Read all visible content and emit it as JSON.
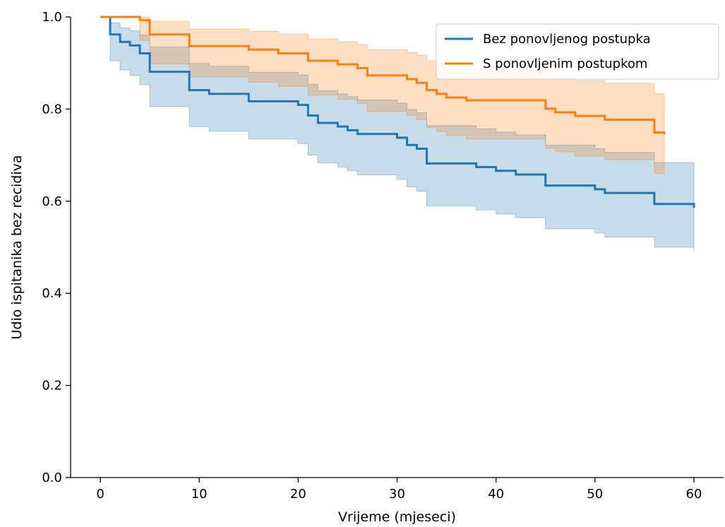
{
  "chart_data": {
    "type": "line",
    "title": "",
    "xlabel": "Vrijeme (mjeseci)",
    "ylabel": "Udio ispitanika bez recidiva",
    "xlim": [
      -3,
      63
    ],
    "ylim": [
      0,
      1.0
    ],
    "x_ticks": [
      0,
      10,
      20,
      30,
      40,
      50,
      60
    ],
    "y_ticks": [
      0.0,
      0.2,
      0.4,
      0.6,
      0.8,
      1.0
    ],
    "x_tick_labels": [
      "0",
      "10",
      "20",
      "30",
      "40",
      "50",
      "60"
    ],
    "y_tick_labels": [
      "0.0",
      "0.2",
      "0.4",
      "0.6",
      "0.8",
      "1.0"
    ],
    "grid": false,
    "legend_position": "top-right",
    "series": [
      {
        "name": "Bez ponovljenog postupka",
        "color": "#1f77b4",
        "step_x": [
          0,
          1,
          1,
          2,
          3,
          4,
          5,
          9,
          11,
          15,
          18,
          20,
          21,
          22,
          24,
          25,
          26,
          28,
          30,
          31,
          32,
          33,
          38,
          40,
          42,
          45,
          50,
          51,
          56,
          60
        ],
        "survival": [
          1.0,
          1.0,
          0.962,
          0.946,
          0.938,
          0.921,
          0.881,
          0.841,
          0.833,
          0.817,
          0.817,
          0.809,
          0.786,
          0.77,
          0.762,
          0.754,
          0.746,
          0.746,
          0.738,
          0.722,
          0.714,
          0.682,
          0.674,
          0.666,
          0.658,
          0.634,
          0.626,
          0.618,
          0.594,
          0.586
        ],
        "ci_lower": [
          1.0,
          1.0,
          0.905,
          0.885,
          0.873,
          0.853,
          0.806,
          0.762,
          0.752,
          0.735,
          0.735,
          0.725,
          0.7,
          0.683,
          0.674,
          0.666,
          0.657,
          0.657,
          0.648,
          0.631,
          0.622,
          0.59,
          0.581,
          0.572,
          0.564,
          0.54,
          0.531,
          0.522,
          0.5,
          0.49
        ],
        "ci_upper": [
          1.0,
          1.0,
          0.987,
          0.976,
          0.97,
          0.961,
          0.935,
          0.899,
          0.893,
          0.88,
          0.88,
          0.874,
          0.854,
          0.84,
          0.833,
          0.827,
          0.82,
          0.82,
          0.813,
          0.799,
          0.792,
          0.764,
          0.757,
          0.75,
          0.744,
          0.722,
          0.714,
          0.706,
          0.684,
          0.676
        ]
      },
      {
        "name": "S ponovljenim postupkom",
        "color": "#ff7f0e",
        "step_x": [
          0,
          1,
          4,
          5,
          9,
          15,
          18,
          21,
          24,
          26,
          27,
          31,
          32,
          33,
          34,
          35,
          37,
          40,
          45,
          46,
          48,
          51,
          56,
          57
        ],
        "survival": [
          1.0,
          1.0,
          0.993,
          0.962,
          0.937,
          0.929,
          0.921,
          0.905,
          0.897,
          0.889,
          0.873,
          0.865,
          0.857,
          0.841,
          0.833,
          0.825,
          0.819,
          0.819,
          0.801,
          0.793,
          0.785,
          0.777,
          0.749,
          0.745
        ],
        "ci_lower": [
          1.0,
          1.0,
          0.949,
          0.898,
          0.87,
          0.858,
          0.849,
          0.83,
          0.821,
          0.812,
          0.795,
          0.786,
          0.777,
          0.76,
          0.751,
          0.743,
          0.735,
          0.735,
          0.715,
          0.707,
          0.698,
          0.69,
          0.66,
          0.656
        ],
        "ci_upper": [
          1.0,
          1.0,
          1.0,
          0.99,
          0.974,
          0.969,
          0.963,
          0.952,
          0.946,
          0.94,
          0.929,
          0.923,
          0.917,
          0.905,
          0.899,
          0.893,
          0.888,
          0.888,
          0.874,
          0.868,
          0.862,
          0.856,
          0.834,
          0.831
        ]
      }
    ]
  }
}
